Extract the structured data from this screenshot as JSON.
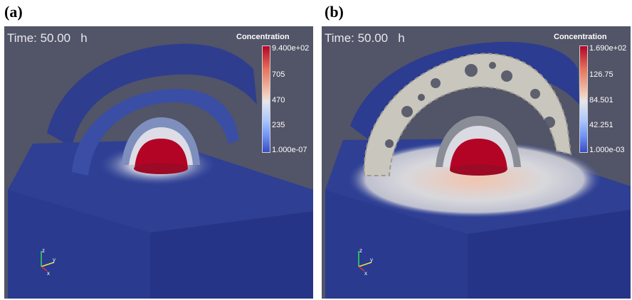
{
  "panels": [
    {
      "letter": "(a)",
      "time": "Time: 50.00   h",
      "legend_title": "Concentration",
      "ticks": [
        "9.400e+02",
        "705",
        "470",
        "235",
        "1.000e-07"
      ]
    },
    {
      "letter": "(b)",
      "time": "Time: 50.00   h",
      "legend_title": "Concentration",
      "ticks": [
        "1.690e+02",
        "126.75",
        "84.501",
        "42.251",
        "1.000e-03"
      ]
    }
  ],
  "axis_labels": {
    "z": "z",
    "y": "y",
    "x": "x"
  },
  "colors": {
    "background": "#525467",
    "box_top": "#2e3f94",
    "box_side": "#27358a",
    "core": "#b40426",
    "shell_light": "#e6e6ea"
  }
}
